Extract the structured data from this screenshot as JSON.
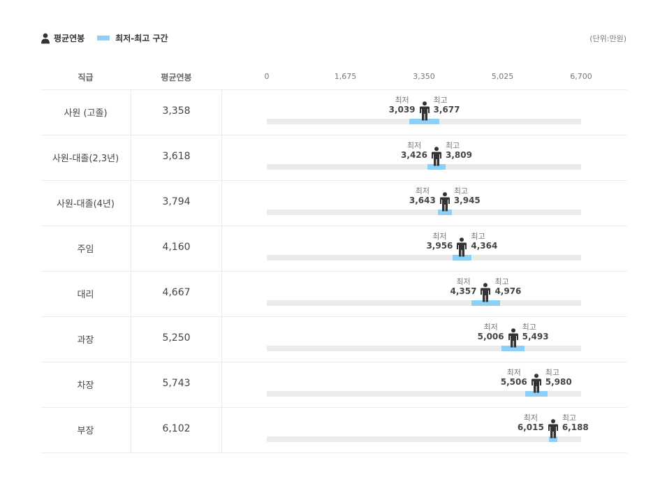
{
  "legend": {
    "avg_label": "평균연봉",
    "range_label": "최저-최고 구간",
    "unit": "(단위:만원)"
  },
  "headers": {
    "rank": "직급",
    "avg": "평균연봉"
  },
  "labels": {
    "min": "최저",
    "max": "최고"
  },
  "colors": {
    "range": "#8dd0f7",
    "track": "#ebebeb",
    "figure": "#333333"
  },
  "chart_data": {
    "type": "range-bar",
    "xlim": [
      0,
      6700
    ],
    "ticks": [
      "0",
      "1,675",
      "3,350",
      "5,025",
      "6,700"
    ],
    "rows": [
      {
        "rank": "사원 (고졸)",
        "avg": 3358,
        "avg_text": "3,358",
        "min": 3039,
        "min_text": "3,039",
        "max": 3677,
        "max_text": "3,677"
      },
      {
        "rank": "사원-대졸(2,3년)",
        "avg": 3618,
        "avg_text": "3,618",
        "min": 3426,
        "min_text": "3,426",
        "max": 3809,
        "max_text": "3,809"
      },
      {
        "rank": "사원-대졸(4년)",
        "avg": 3794,
        "avg_text": "3,794",
        "min": 3643,
        "min_text": "3,643",
        "max": 3945,
        "max_text": "3,945"
      },
      {
        "rank": "주임",
        "avg": 4160,
        "avg_text": "4,160",
        "min": 3956,
        "min_text": "3,956",
        "max": 4364,
        "max_text": "4,364"
      },
      {
        "rank": "대리",
        "avg": 4667,
        "avg_text": "4,667",
        "min": 4357,
        "min_text": "4,357",
        "max": 4976,
        "max_text": "4,976"
      },
      {
        "rank": "과장",
        "avg": 5250,
        "avg_text": "5,250",
        "min": 5006,
        "min_text": "5,006",
        "max": 5493,
        "max_text": "5,493"
      },
      {
        "rank": "차장",
        "avg": 5743,
        "avg_text": "5,743",
        "min": 5506,
        "min_text": "5,506",
        "max": 5980,
        "max_text": "5,980"
      },
      {
        "rank": "부장",
        "avg": 6102,
        "avg_text": "6,102",
        "min": 6015,
        "min_text": "6,015",
        "max": 6188,
        "max_text": "6,188"
      }
    ]
  }
}
